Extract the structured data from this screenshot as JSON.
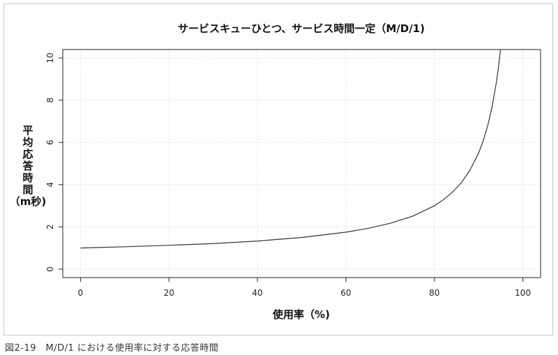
{
  "chart_data": {
    "type": "line",
    "title": "サービスキューひとつ、サービス時間一定（M/D/1)",
    "xlabel": "使用率（%)",
    "ylabel_lines": [
      "平",
      "均",
      "応",
      "答",
      "時",
      "間",
      "（m秒)"
    ],
    "xlim": [
      -4,
      104
    ],
    "ylim": [
      -0.4,
      10.4
    ],
    "x_ticks": [
      0,
      20,
      40,
      60,
      80,
      100
    ],
    "y_ticks": [
      0,
      2,
      4,
      6,
      8,
      10
    ],
    "grid": true,
    "grid_style": "dotted",
    "line_color": "#333333",
    "series": [
      {
        "x": [
          0,
          10,
          20,
          30,
          40,
          50,
          60,
          65,
          70,
          75,
          80,
          82,
          84,
          86,
          88,
          90,
          91,
          92,
          93,
          94,
          94.5,
          95
        ],
        "values": [
          1.0,
          1.06,
          1.13,
          1.21,
          1.33,
          1.5,
          1.75,
          1.93,
          2.17,
          2.5,
          3.0,
          3.28,
          3.63,
          4.07,
          4.67,
          5.5,
          6.06,
          6.75,
          7.64,
          8.83,
          9.59,
          10.5
        ]
      }
    ]
  },
  "caption": "図2-19　M/D/1 における使用率に対する応答時間"
}
